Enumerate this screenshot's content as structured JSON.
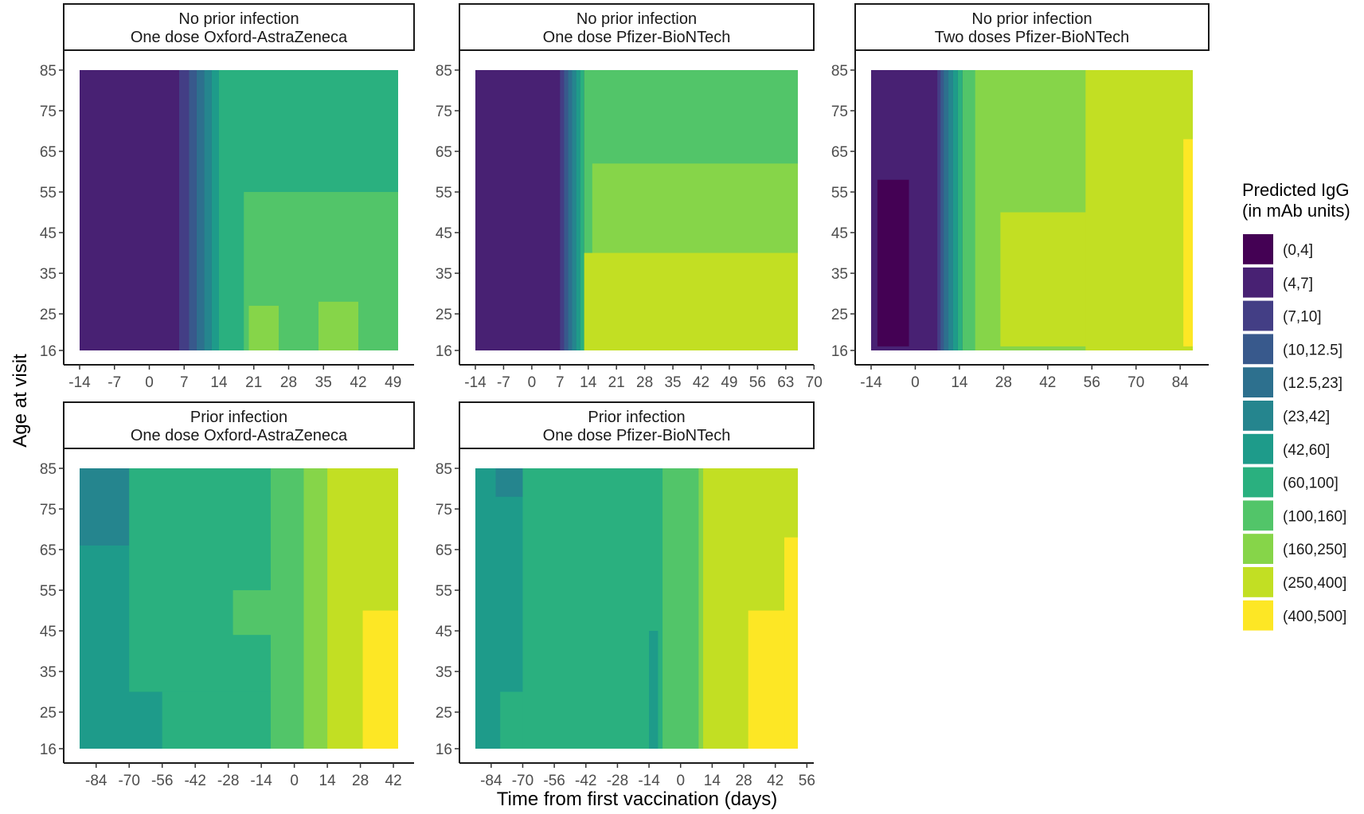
{
  "figure": {
    "xlabel": "Time from first vaccination (days)",
    "ylabel": "Age at visit"
  },
  "chart_data": {
    "type": "heatmap",
    "xlabel": "Time from first vaccination (days)",
    "ylabel": "Age at visit",
    "y_ticks": [
      16,
      25,
      35,
      45,
      55,
      65,
      75,
      85
    ],
    "ylim": [
      16,
      85
    ],
    "legend": {
      "title": [
        "Predicted IgG",
        "(in mAb units)"
      ],
      "placement": "right",
      "bins": [
        {
          "label": "(0,4]",
          "color": "#440154"
        },
        {
          "label": "(4,7]",
          "color": "#482173"
        },
        {
          "label": "(7,10]",
          "color": "#433e85"
        },
        {
          "label": "(10,12.5]",
          "color": "#38598c"
        },
        {
          "label": "(12.5,23]",
          "color": "#2d708e"
        },
        {
          "label": "(23,42]",
          "color": "#25858e"
        },
        {
          "label": "(42,60]",
          "color": "#1e9b8a"
        },
        {
          "label": "(60,100]",
          "color": "#2ab07f"
        },
        {
          "label": "(100,160]",
          "color": "#52c569"
        },
        {
          "label": "(160,250]",
          "color": "#86d549"
        },
        {
          "label": "(250,400]",
          "color": "#c2df23"
        },
        {
          "label": "(400,500]",
          "color": "#fde725"
        }
      ]
    },
    "panels": [
      {
        "title": [
          "No prior infection",
          "One dose Oxford-AstraZeneca"
        ],
        "x_ticks": [
          -14,
          -7,
          0,
          7,
          14,
          21,
          28,
          35,
          42,
          49
        ],
        "xlim": [
          -14,
          50
        ],
        "regions": [
          {
            "bin": 1,
            "x": [
              -14,
              50
            ]
          },
          {
            "bin": 2,
            "x": [
              6,
              8
            ]
          },
          {
            "bin": 3,
            "x": [
              8,
              9.5
            ]
          },
          {
            "bin": 4,
            "x": [
              9.5,
              11
            ]
          },
          {
            "bin": 5,
            "x": [
              11,
              12.5
            ]
          },
          {
            "bin": 6,
            "x": [
              12.5,
              14
            ]
          },
          {
            "bin": 7,
            "x": [
              14,
              50
            ]
          },
          {
            "bin": 8,
            "x": [
              19,
              50
            ],
            "y": [
              16,
              55
            ]
          },
          {
            "bin": 9,
            "x": [
              20,
              26
            ],
            "y": [
              16,
              27
            ]
          },
          {
            "bin": 9,
            "x": [
              34,
              42
            ],
            "y": [
              16,
              28
            ]
          }
        ]
      },
      {
        "title": [
          "No prior infection",
          "One dose Pfizer-BioNTech"
        ],
        "x_ticks": [
          -14,
          -7,
          0,
          7,
          14,
          21,
          28,
          35,
          42,
          49,
          56,
          63,
          70
        ],
        "xlim": [
          -14,
          66
        ],
        "regions": [
          {
            "bin": 1,
            "x": [
              -14,
              66
            ]
          },
          {
            "bin": 2,
            "x": [
              7,
              8
            ]
          },
          {
            "bin": 3,
            "x": [
              8,
              9
            ]
          },
          {
            "bin": 4,
            "x": [
              9,
              10
            ]
          },
          {
            "bin": 5,
            "x": [
              10,
              11
            ]
          },
          {
            "bin": 6,
            "x": [
              11,
              12
            ]
          },
          {
            "bin": 7,
            "x": [
              12,
              13
            ]
          },
          {
            "bin": 8,
            "x": [
              13,
              66
            ]
          },
          {
            "bin": 8,
            "x": [
              16,
              66
            ],
            "y": [
              16,
              78
            ]
          },
          {
            "bin": 9,
            "x": [
              15,
              66
            ],
            "y": [
              16,
              62
            ]
          },
          {
            "bin": 10,
            "x": [
              13,
              66
            ],
            "y": [
              16,
              40
            ]
          }
        ]
      },
      {
        "title": [
          "No prior infection",
          "Two doses Pfizer-BioNTech"
        ],
        "x_ticks": [
          -14,
          0,
          14,
          28,
          42,
          56,
          70,
          84
        ],
        "xlim": [
          -14,
          88
        ],
        "regions": [
          {
            "bin": 1,
            "x": [
              -14,
              88
            ]
          },
          {
            "bin": 0,
            "x": [
              -12,
              -2
            ],
            "y": [
              17,
              58
            ]
          },
          {
            "bin": 2,
            "x": [
              7,
              8
            ]
          },
          {
            "bin": 3,
            "x": [
              8,
              9
            ]
          },
          {
            "bin": 4,
            "x": [
              9,
              10.5
            ]
          },
          {
            "bin": 5,
            "x": [
              10.5,
              12
            ]
          },
          {
            "bin": 6,
            "x": [
              12,
              13.5
            ]
          },
          {
            "bin": 7,
            "x": [
              13.5,
              15
            ]
          },
          {
            "bin": 8,
            "x": [
              15,
              88
            ]
          },
          {
            "bin": 9,
            "x": [
              19,
              88
            ]
          },
          {
            "bin": 10,
            "x": [
              27,
              88
            ],
            "y": [
              17,
              50
            ]
          },
          {
            "bin": 10,
            "x": [
              54,
              88
            ]
          },
          {
            "bin": 11,
            "x": [
              85,
              88
            ],
            "y": [
              17,
              68
            ]
          }
        ]
      },
      {
        "title": [
          "Prior infection",
          "One dose Oxford-AstraZeneca"
        ],
        "x_ticks": [
          -84,
          -70,
          -56,
          -42,
          -28,
          -14,
          0,
          14,
          28,
          42
        ],
        "xlim": [
          -91,
          44
        ],
        "regions": [
          {
            "bin": 6,
            "x": [
              -91,
              44
            ]
          },
          {
            "bin": 5,
            "x": [
              -91,
              -70
            ],
            "y": [
              66,
              85
            ]
          },
          {
            "bin": 7,
            "x": [
              -70,
              44
            ],
            "y": [
              30,
              85
            ]
          },
          {
            "bin": 7,
            "x": [
              -56,
              44
            ],
            "y": [
              16,
              30
            ]
          },
          {
            "bin": 8,
            "x": [
              -26,
              -10
            ],
            "y": [
              44,
              55
            ]
          },
          {
            "bin": 8,
            "x": [
              -10,
              44
            ]
          },
          {
            "bin": 9,
            "x": [
              4,
              44
            ]
          },
          {
            "bin": 10,
            "x": [
              14,
              44
            ]
          },
          {
            "bin": 11,
            "x": [
              29,
              44
            ],
            "y": [
              16,
              50
            ]
          }
        ]
      },
      {
        "title": [
          "Prior infection",
          "One dose Pfizer-BioNTech"
        ],
        "x_ticks": [
          -84,
          -70,
          -56,
          -42,
          -28,
          -14,
          0,
          14,
          28,
          42,
          56
        ],
        "xlim": [
          -91,
          52
        ],
        "regions": [
          {
            "bin": 6,
            "x": [
              -91,
              52
            ]
          },
          {
            "bin": 5,
            "x": [
              -82,
              -70
            ],
            "y": [
              78,
              85
            ]
          },
          {
            "bin": 7,
            "x": [
              -70,
              52
            ]
          },
          {
            "bin": 7,
            "x": [
              -80,
              -70
            ],
            "y": [
              16,
              30
            ]
          },
          {
            "bin": 6,
            "x": [
              -14,
              -10
            ],
            "y": [
              16,
              45
            ]
          },
          {
            "bin": 8,
            "x": [
              -8,
              52
            ]
          },
          {
            "bin": 9,
            "x": [
              8,
              52
            ]
          },
          {
            "bin": 10,
            "x": [
              10,
              52
            ]
          },
          {
            "bin": 11,
            "x": [
              30,
              52
            ],
            "y": [
              16,
              50
            ]
          },
          {
            "bin": 11,
            "x": [
              46,
              52
            ],
            "y": [
              16,
              68
            ]
          }
        ]
      }
    ]
  }
}
